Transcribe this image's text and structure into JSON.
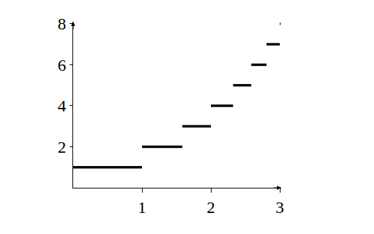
{
  "chart_data": {
    "type": "line",
    "x": [
      0,
      1,
      1,
      1,
      1.585,
      1.585,
      1.585,
      2,
      2,
      2,
      2.322,
      2.322,
      2.322,
      2.585,
      2.585,
      2.585,
      2.807,
      2.807,
      2.807,
      3,
      3,
      3,
      3.01
    ],
    "values": [
      1,
      1,
      null,
      2,
      2,
      null,
      3,
      3,
      null,
      4,
      4,
      null,
      5,
      5,
      null,
      6,
      6,
      null,
      7,
      7,
      null,
      8,
      8
    ],
    "color": "#000000",
    "line_style": "solid",
    "xlim": [
      0,
      3.02
    ],
    "xticks": [
      1,
      2,
      3
    ],
    "ylim": [
      0,
      8.1
    ],
    "yticks": [
      2,
      4,
      6,
      8
    ],
    "grid": false
  }
}
